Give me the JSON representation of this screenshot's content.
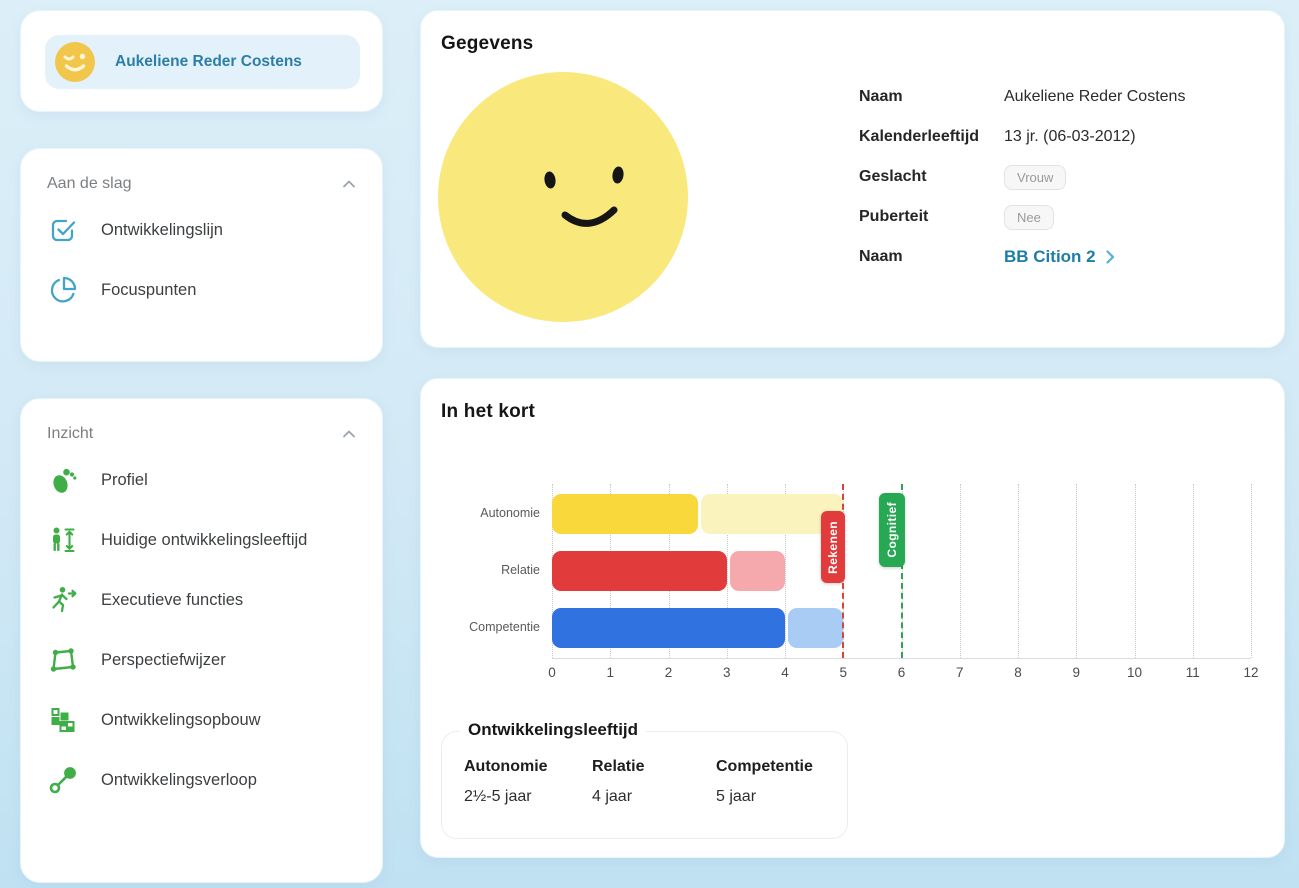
{
  "colors": {
    "accent_blue": "#42a3cb",
    "accent_green": "#3fae47",
    "link_teal": "#1d7ea6",
    "user_name_teal": "#2c7ea7",
    "panel_bg": "#ffffff",
    "page_bg_top": "#dceff8",
    "page_bg_bottom": "#bfe1f2"
  },
  "sidebar": {
    "user": {
      "name": "Aukeliene Reder Costens",
      "avatar": "winking-smiley-icon"
    },
    "sections": [
      {
        "title": "Aan de slag",
        "collapse_icon": "chevron-up-icon",
        "items": [
          {
            "label": "Ontwikkelingslijn",
            "icon": "check-square-icon"
          },
          {
            "label": "Focuspunten",
            "icon": "pie-chart-icon"
          }
        ]
      },
      {
        "title": "Inzicht",
        "collapse_icon": "chevron-up-icon",
        "items": [
          {
            "label": "Profiel",
            "icon": "footprint-icon"
          },
          {
            "label": "Huidige ontwikkelingsleeftijd",
            "icon": "person-height-icon"
          },
          {
            "label": "Executieve functies",
            "icon": "running-person-icon"
          },
          {
            "label": "Perspectiefwijzer",
            "icon": "vector-nodes-icon"
          },
          {
            "label": "Ontwikkelingsopbouw",
            "icon": "building-blocks-icon"
          },
          {
            "label": "Ontwikkelingsverloop",
            "icon": "trend-link-icon"
          }
        ]
      }
    ]
  },
  "gegevens": {
    "title": "Gegevens",
    "avatar": "smiley-face-illustration",
    "fields": [
      {
        "label": "Naam",
        "value": "Aukeliene Reder Costens",
        "type": "text"
      },
      {
        "label": "Kalenderleeftijd",
        "value": "13 jr. (06-03-2012)",
        "type": "text"
      },
      {
        "label": "Geslacht",
        "value": "Vrouw",
        "type": "badge"
      },
      {
        "label": "Puberteit",
        "value": "Nee",
        "type": "badge"
      },
      {
        "label": "Naam",
        "value": "BB Cition 2",
        "type": "link",
        "icon": "chevron-right-icon"
      }
    ]
  },
  "kort": {
    "title": "In het kort",
    "agebox": {
      "legend": "Ontwikkelingsleeftijd",
      "columns": [
        {
          "label": "Autonomie",
          "value": "2½-5 jaar"
        },
        {
          "label": "Relatie",
          "value": "4 jaar"
        },
        {
          "label": "Competentie",
          "value": "5 jaar"
        }
      ]
    }
  },
  "chart_data": {
    "type": "bar",
    "orientation": "horizontal",
    "title": "In het kort",
    "categories": [
      "Autonomie",
      "Relatie",
      "Competentie"
    ],
    "series": [
      {
        "name": "ontwikkelingsleeftijd-ondergrens",
        "values": [
          2.5,
          3,
          4
        ]
      },
      {
        "name": "ontwikkelingsleeftijd-bovengrens",
        "values": [
          5,
          4,
          5
        ]
      }
    ],
    "bar_colors": [
      {
        "solid": "#f8d83b",
        "light": "#fbf3bd"
      },
      {
        "solid": "#e23b3c",
        "light": "#f5a9ad"
      },
      {
        "solid": "#2f72e0",
        "light": "#a9ccf5"
      }
    ],
    "xlim": [
      0,
      12
    ],
    "xticks": [
      0,
      1,
      2,
      3,
      4,
      5,
      6,
      7,
      8,
      9,
      10,
      11,
      12
    ],
    "grid": "vertical-dotted",
    "reference_lines": [
      {
        "label": "Rekenen",
        "x": 5,
        "color": "#d7453a",
        "badge_color": "#e23b3c"
      },
      {
        "label": "Cognitief",
        "x": 6,
        "color": "#2ea355",
        "badge_color": "#27a853"
      }
    ]
  }
}
